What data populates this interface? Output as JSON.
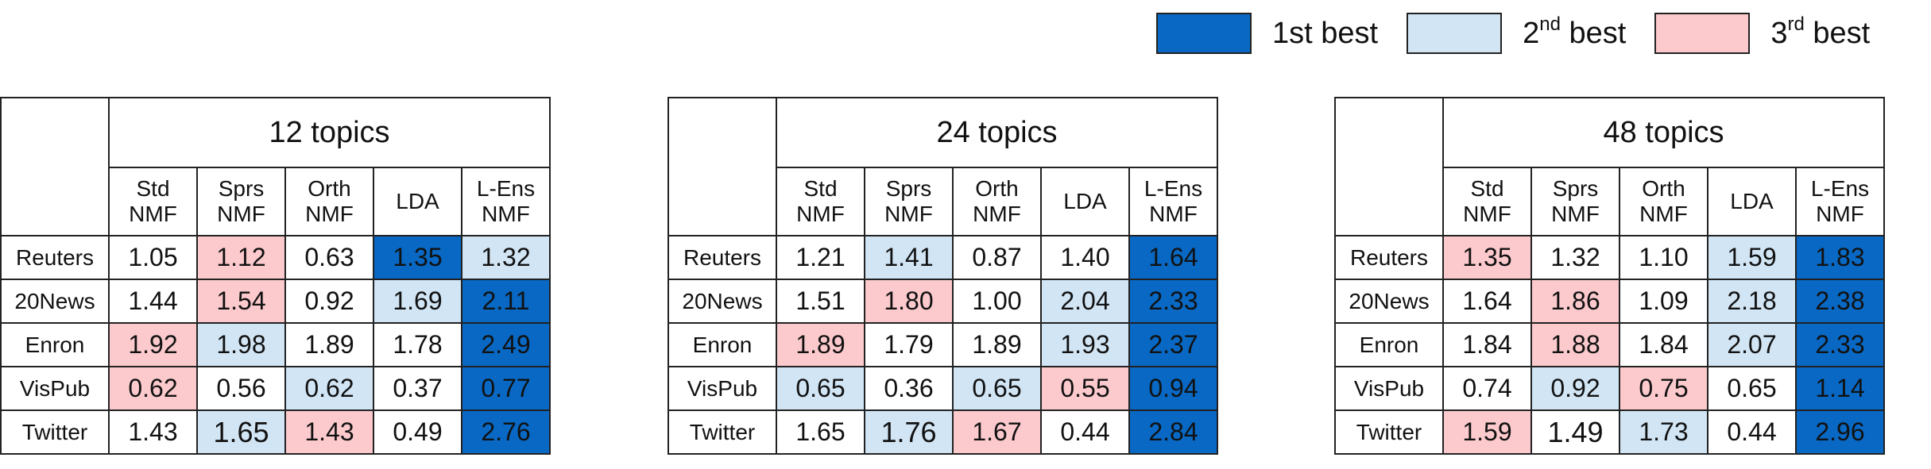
{
  "legend": [
    {
      "name": "1st best",
      "color": "#0868c3"
    },
    {
      "name_main": "2",
      "name_sup": "nd",
      "name_tail": " best",
      "color": "#d2e5f4"
    },
    {
      "name_main": "3",
      "name_sup": "rd",
      "name_tail": " best",
      "color": "#fccacd"
    }
  ],
  "colors": {
    "first": "#0868c3",
    "second": "#d2e5f4",
    "third": "#fccacd"
  },
  "columns": [
    {
      "l1": "Std",
      "l2": "NMF"
    },
    {
      "l1": "Sprs",
      "l2": "NMF"
    },
    {
      "l1": "Orth",
      "l2": "NMF"
    },
    {
      "l1": "LDA",
      "l2": ""
    },
    {
      "l1": "L-Ens",
      "l2": "NMF"
    }
  ],
  "rows": [
    "Reuters",
    "20News",
    "Enron",
    "VisPub",
    "Twitter"
  ],
  "tables": [
    {
      "title": "12 topics",
      "values": [
        [
          "1.05",
          "1.12",
          "0.63",
          "1.35",
          "1.32"
        ],
        [
          "1.44",
          "1.54",
          "0.92",
          "1.69",
          "2.11"
        ],
        [
          "1.92",
          "1.98",
          "1.89",
          "1.78",
          "2.49"
        ],
        [
          "0.62",
          "0.56",
          "0.62",
          "0.37",
          "0.77"
        ],
        [
          "1.43",
          "1.65",
          "1.43",
          "0.49",
          "2.76"
        ]
      ],
      "ranks": [
        [
          0,
          3,
          0,
          1,
          2
        ],
        [
          0,
          3,
          0,
          2,
          1
        ],
        [
          3,
          2,
          0,
          0,
          1
        ],
        [
          3,
          0,
          2,
          0,
          1
        ],
        [
          0,
          2,
          3,
          0,
          1
        ]
      ]
    },
    {
      "title": "24 topics",
      "values": [
        [
          "1.21",
          "1.41",
          "0.87",
          "1.40",
          "1.64"
        ],
        [
          "1.51",
          "1.80",
          "1.00",
          "2.04",
          "2.33"
        ],
        [
          "1.89",
          "1.79",
          "1.89",
          "1.93",
          "2.37"
        ],
        [
          "0.65",
          "0.36",
          "0.65",
          "0.55",
          "0.94"
        ],
        [
          "1.65",
          "1.76",
          "1.67",
          "0.44",
          "2.84"
        ]
      ],
      "ranks": [
        [
          0,
          2,
          0,
          0,
          1
        ],
        [
          0,
          3,
          0,
          2,
          1
        ],
        [
          3,
          0,
          0,
          2,
          1
        ],
        [
          2,
          0,
          2,
          3,
          1
        ],
        [
          0,
          2,
          3,
          0,
          1
        ]
      ]
    },
    {
      "title": "48 topics",
      "values": [
        [
          "1.35",
          "1.32",
          "1.10",
          "1.59",
          "1.83"
        ],
        [
          "1.64",
          "1.86",
          "1.09",
          "2.18",
          "2.38"
        ],
        [
          "1.84",
          "1.88",
          "1.84",
          "2.07",
          "2.33"
        ],
        [
          "0.74",
          "0.92",
          "0.75",
          "0.65",
          "1.14"
        ],
        [
          "1.59",
          "1.49",
          "1.73",
          "0.44",
          "2.96"
        ]
      ],
      "ranks": [
        [
          3,
          0,
          0,
          2,
          1
        ],
        [
          0,
          3,
          0,
          2,
          1
        ],
        [
          0,
          3,
          0,
          2,
          1
        ],
        [
          0,
          2,
          3,
          0,
          1
        ],
        [
          3,
          0,
          2,
          0,
          1
        ]
      ]
    }
  ]
}
